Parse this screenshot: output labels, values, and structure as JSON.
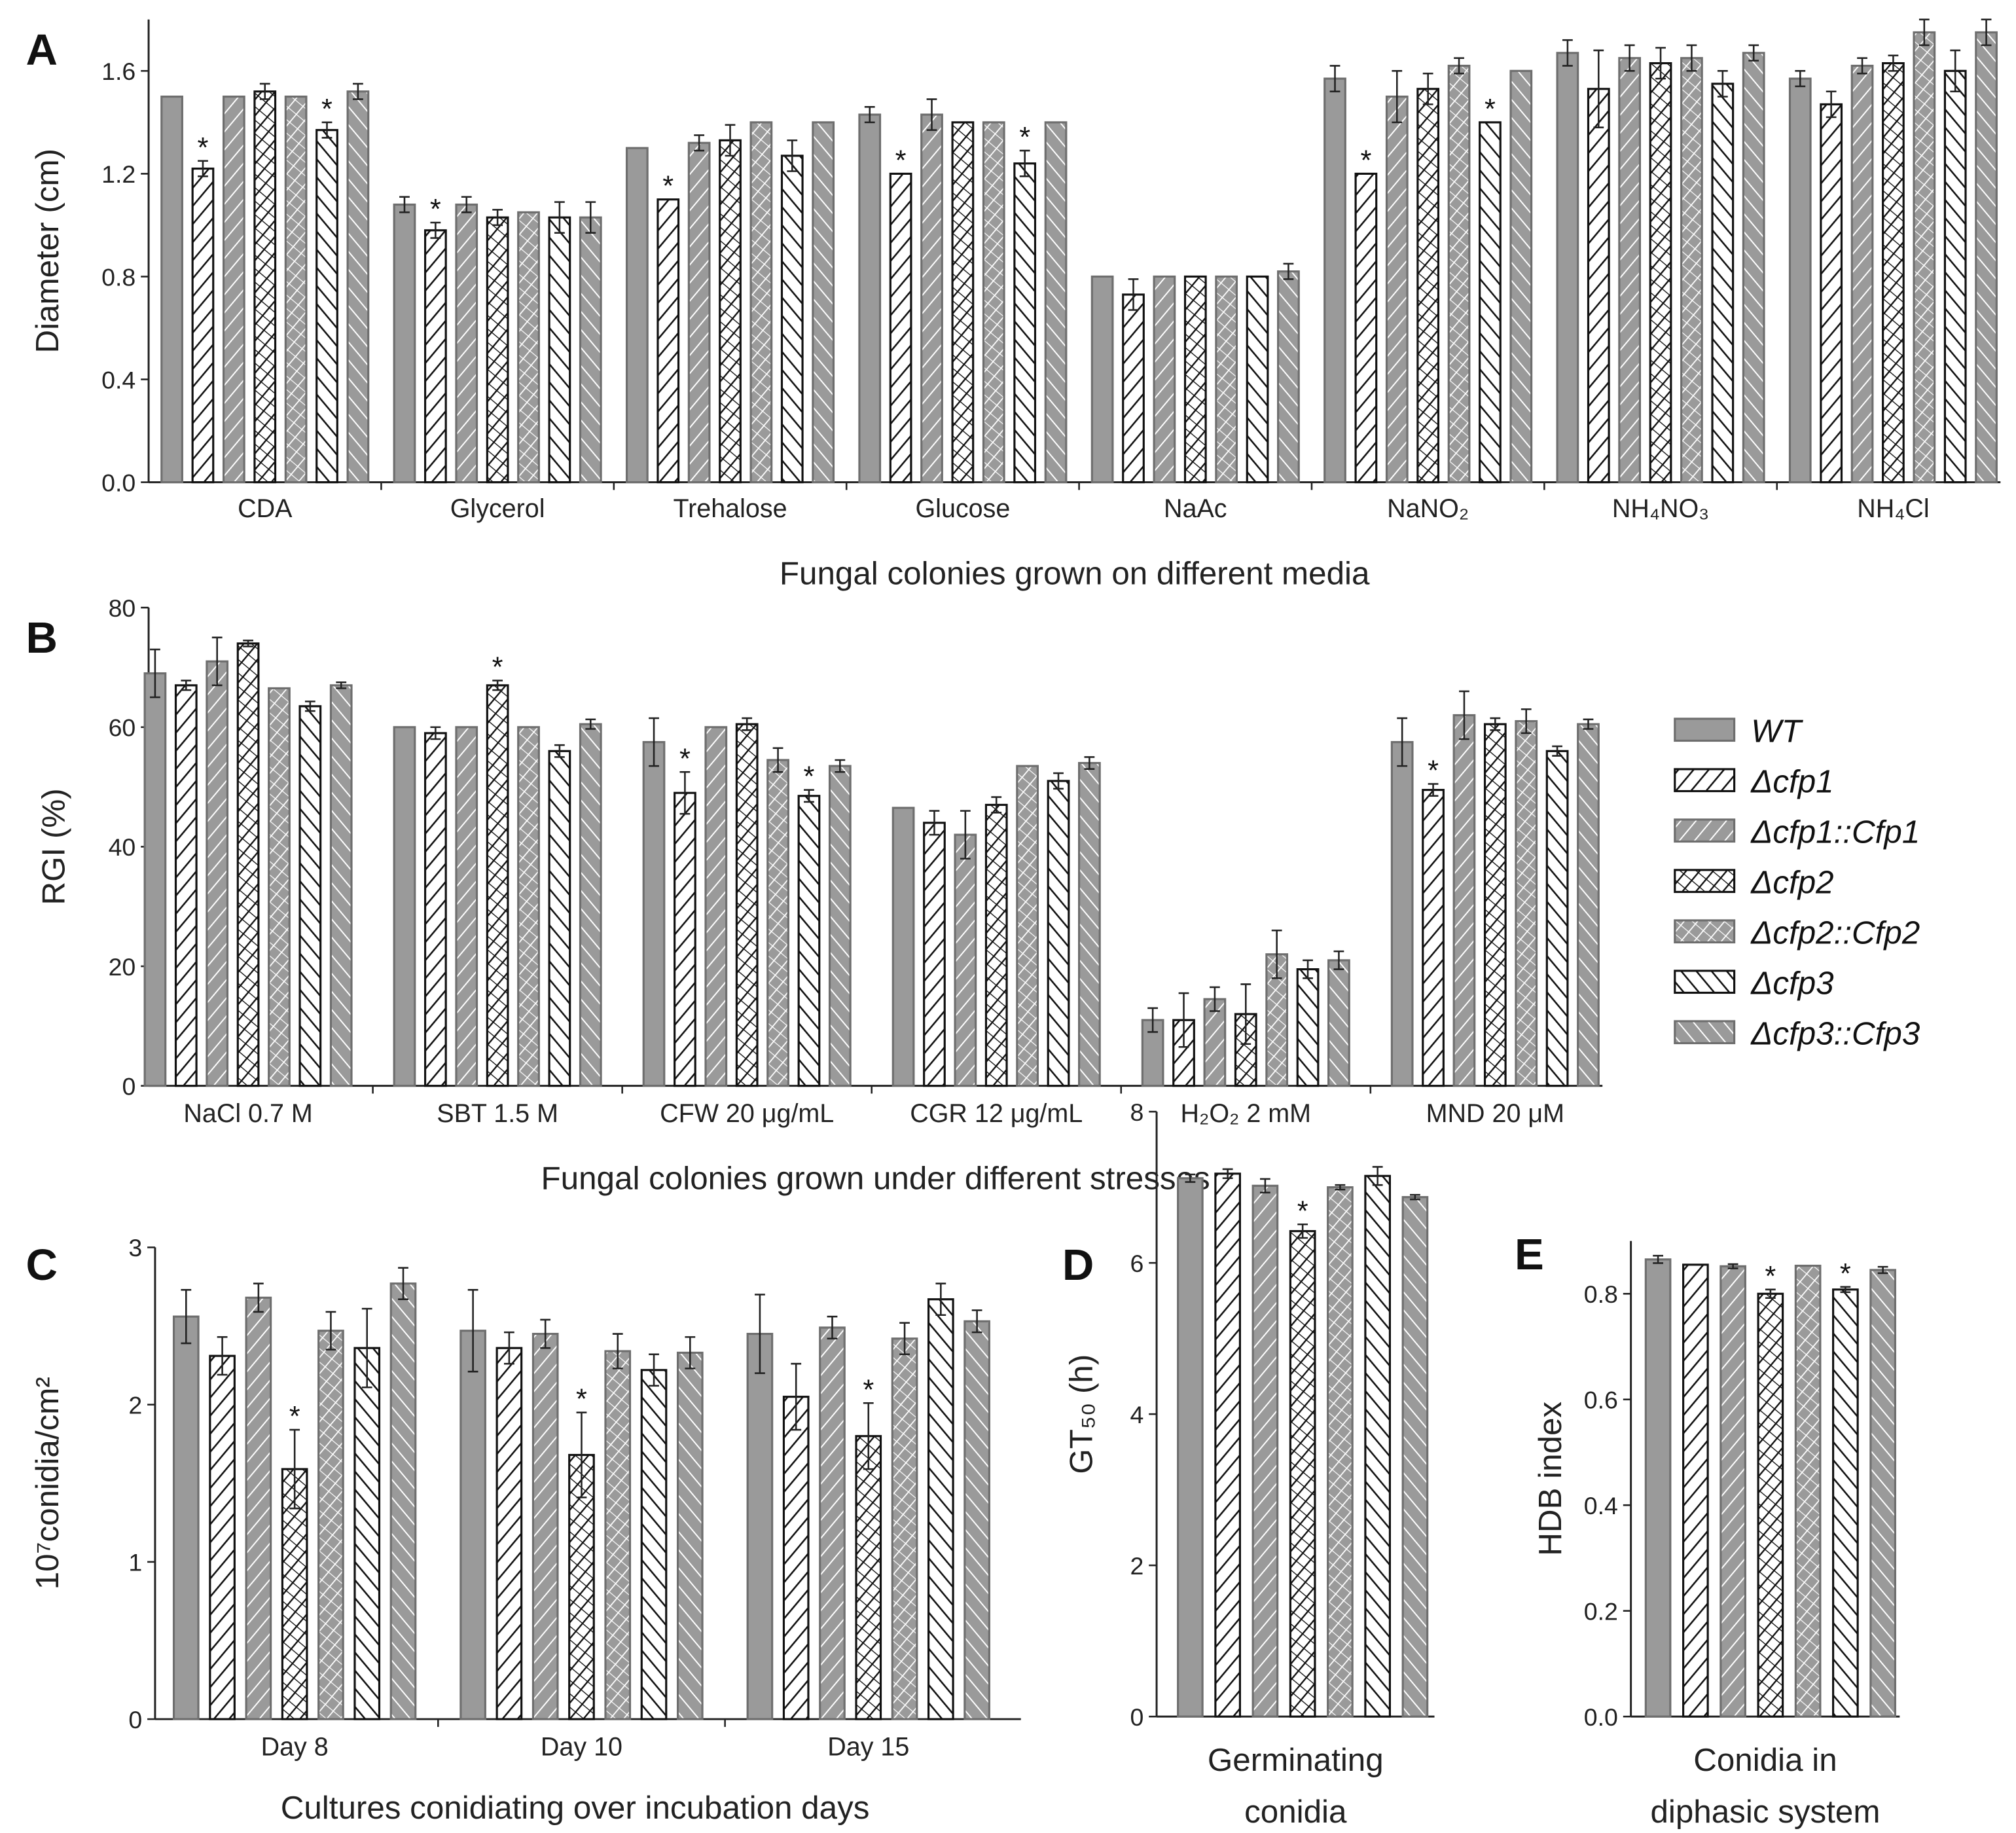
{
  "legend": [
    "WT",
    "Δcfp1",
    "Δcfp1::Cfp1",
    "Δcfp2",
    "Δcfp2::Cfp2",
    "Δcfp3",
    "Δcfp3::Cfp3"
  ],
  "colors": {
    "gray": "#9a9a9a",
    "edge_gray": "#6e6e6e",
    "black": "#111111",
    "white": "#ffffff"
  },
  "chart_data": [
    {
      "panel": "A",
      "type": "bar",
      "xlabel": "Fungal colonies grown on different media",
      "ylabel": "Diameter (cm)",
      "ylim": [
        0,
        1.8
      ],
      "yticks": [
        0.0,
        0.4,
        0.8,
        1.2,
        1.6
      ],
      "ytick_labels": [
        "0.0",
        "0.4",
        "0.8",
        "1.2",
        "1.6"
      ],
      "categories": [
        "CDA",
        "Glycerol",
        "Trehalose",
        "Glucose",
        "NaAc",
        "NaNO₂",
        "NH₄NO₃",
        "NH₄Cl"
      ],
      "series": [
        {
          "name": "WT",
          "values": [
            1.5,
            1.08,
            1.3,
            1.43,
            0.8,
            1.57,
            1.67,
            1.57
          ],
          "errors": [
            0,
            0.03,
            0,
            0.03,
            0,
            0.05,
            0.05,
            0.03
          ]
        },
        {
          "name": "Δcfp1",
          "values": [
            1.22,
            0.98,
            1.1,
            1.2,
            0.73,
            1.2,
            1.53,
            1.47
          ],
          "errors": [
            0.03,
            0.03,
            0,
            0,
            0.06,
            0,
            0.15,
            0.05
          ]
        },
        {
          "name": "Δcfp1::Cfp1",
          "values": [
            1.5,
            1.08,
            1.32,
            1.43,
            0.8,
            1.5,
            1.65,
            1.62
          ],
          "errors": [
            0,
            0.03,
            0.03,
            0.06,
            0,
            0.1,
            0.05,
            0.03
          ]
        },
        {
          "name": "Δcfp2",
          "values": [
            1.52,
            1.03,
            1.33,
            1.4,
            0.8,
            1.53,
            1.63,
            1.63
          ],
          "errors": [
            0.03,
            0.03,
            0.06,
            0,
            0,
            0.06,
            0.06,
            0.03
          ]
        },
        {
          "name": "Δcfp2::Cfp2",
          "values": [
            1.5,
            1.05,
            1.4,
            1.4,
            0.8,
            1.62,
            1.65,
            1.75
          ],
          "errors": [
            0,
            0,
            0,
            0,
            0,
            0.03,
            0.05,
            0.05
          ]
        },
        {
          "name": "Δcfp3",
          "values": [
            1.37,
            1.03,
            1.27,
            1.24,
            0.8,
            1.4,
            1.55,
            1.6
          ],
          "errors": [
            0.03,
            0.06,
            0.06,
            0.05,
            0,
            0,
            0.05,
            0.08
          ]
        },
        {
          "name": "Δcfp3::Cfp3",
          "values": [
            1.52,
            1.03,
            1.4,
            1.4,
            0.82,
            1.6,
            1.67,
            1.75
          ],
          "errors": [
            0.03,
            0.06,
            0,
            0,
            0.03,
            0,
            0.03,
            0.05
          ]
        }
      ],
      "significant": [
        [
          1,
          0
        ],
        [
          5,
          0
        ],
        [
          1,
          1
        ],
        [
          1,
          2
        ],
        [
          1,
          3
        ],
        [
          5,
          3
        ],
        [
          1,
          5
        ],
        [
          5,
          5
        ]
      ]
    },
    {
      "panel": "B",
      "type": "bar",
      "xlabel": "Fungal colonies grown under different stresses",
      "ylabel": "RGI (%)",
      "ylim": [
        0,
        80
      ],
      "yticks": [
        0,
        20,
        40,
        60,
        80
      ],
      "ytick_labels": [
        "0",
        "20",
        "40",
        "60",
        "80"
      ],
      "categories": [
        "NaCl 0.7 M",
        "SBT 1.5 M",
        "CFW 20 μg/mL",
        "CGR 12 μg/mL",
        "H₂O₂ 2 mM",
        "MND 20 μM"
      ],
      "series": [
        {
          "name": "WT",
          "values": [
            69,
            60,
            57.5,
            46.5,
            11,
            57.5
          ],
          "errors": [
            4,
            0,
            4,
            0,
            2,
            4
          ]
        },
        {
          "name": "Δcfp1",
          "values": [
            67,
            59,
            49,
            44,
            11,
            49.5
          ],
          "errors": [
            0.8,
            1,
            3.5,
            2,
            4.5,
            1
          ]
        },
        {
          "name": "Δcfp1::Cfp1",
          "values": [
            71,
            60,
            60,
            42,
            14.5,
            62
          ],
          "errors": [
            4,
            0,
            0,
            4,
            2,
            4
          ]
        },
        {
          "name": "Δcfp2",
          "values": [
            74,
            67,
            60.5,
            47,
            12,
            60.5
          ],
          "errors": [
            0.5,
            0.8,
            1,
            1.3,
            5,
            1
          ]
        },
        {
          "name": "Δcfp2::Cfp2",
          "values": [
            66.5,
            60,
            54.5,
            53.5,
            22,
            61
          ],
          "errors": [
            0,
            0,
            2,
            0,
            4,
            2
          ]
        },
        {
          "name": "Δcfp3",
          "values": [
            63.5,
            56,
            48.5,
            51,
            19.5,
            56
          ],
          "errors": [
            0.8,
            1,
            1,
            1.3,
            1.5,
            0.8
          ]
        },
        {
          "name": "Δcfp3::Cfp3",
          "values": [
            67,
            60.5,
            53.5,
            54,
            21,
            60.5
          ],
          "errors": [
            0.5,
            0.8,
            1,
            1,
            1.5,
            0.8
          ]
        }
      ],
      "significant": [
        [
          3,
          1
        ],
        [
          1,
          2
        ],
        [
          5,
          2
        ],
        [
          1,
          5
        ]
      ]
    },
    {
      "panel": "C",
      "type": "bar",
      "xlabel": "Cultures conidiating over incubation days",
      "ylabel": "10⁷conidia/cm²",
      "ylim": [
        0,
        3
      ],
      "yticks": [
        0,
        1,
        2,
        3
      ],
      "ytick_labels": [
        "0",
        "1",
        "2",
        "3"
      ],
      "categories": [
        "Day 8",
        "Day 10",
        "Day 15"
      ],
      "series": [
        {
          "name": "WT",
          "values": [
            2.56,
            2.47,
            2.45
          ],
          "errors": [
            0.17,
            0.26,
            0.25
          ]
        },
        {
          "name": "Δcfp1",
          "values": [
            2.31,
            2.36,
            2.05
          ],
          "errors": [
            0.12,
            0.1,
            0.21
          ]
        },
        {
          "name": "Δcfp1::Cfp1",
          "values": [
            2.68,
            2.45,
            2.49
          ],
          "errors": [
            0.09,
            0.09,
            0.07
          ]
        },
        {
          "name": "Δcfp2",
          "values": [
            1.59,
            1.68,
            1.8
          ],
          "errors": [
            0.25,
            0.27,
            0.21
          ]
        },
        {
          "name": "Δcfp2::Cfp2",
          "values": [
            2.47,
            2.34,
            2.42
          ],
          "errors": [
            0.12,
            0.11,
            0.1
          ]
        },
        {
          "name": "Δcfp3",
          "values": [
            2.36,
            2.22,
            2.67
          ],
          "errors": [
            0.25,
            0.1,
            0.1
          ]
        },
        {
          "name": "Δcfp3::Cfp3",
          "values": [
            2.77,
            2.33,
            2.53
          ],
          "errors": [
            0.1,
            0.1,
            0.07
          ]
        }
      ],
      "significant": [
        [
          3,
          0
        ],
        [
          3,
          1
        ],
        [
          3,
          2
        ]
      ]
    },
    {
      "panel": "D",
      "type": "bar",
      "xlabel": "Germinating conidia",
      "ylabel": "GT₅₀ (h)",
      "ylim": [
        0,
        8
      ],
      "yticks": [
        0,
        2,
        4,
        6,
        8
      ],
      "ytick_labels": [
        "0",
        "2",
        "4",
        "6",
        "8"
      ],
      "categories": [
        ""
      ],
      "series": [
        {
          "name": "WT",
          "values": [
            7.12
          ],
          "errors": [
            0.05
          ]
        },
        {
          "name": "Δcfp1",
          "values": [
            7.18
          ],
          "errors": [
            0.06
          ]
        },
        {
          "name": "Δcfp1::Cfp1",
          "values": [
            7.02
          ],
          "errors": [
            0.09
          ]
        },
        {
          "name": "Δcfp2",
          "values": [
            6.42
          ],
          "errors": [
            0.09
          ]
        },
        {
          "name": "Δcfp2::Cfp2",
          "values": [
            7.0
          ],
          "errors": [
            0.03
          ]
        },
        {
          "name": "Δcfp3",
          "values": [
            7.15
          ],
          "errors": [
            0.12
          ]
        },
        {
          "name": "Δcfp3::Cfp3",
          "values": [
            6.87
          ],
          "errors": [
            0.03
          ]
        }
      ],
      "significant": [
        [
          3,
          0
        ]
      ]
    },
    {
      "panel": "E",
      "type": "bar",
      "xlabel": "Conidia in diphasic system",
      "ylabel": "HDB index",
      "ylim": [
        0,
        0.9
      ],
      "yticks": [
        0.0,
        0.2,
        0.4,
        0.6,
        0.8
      ],
      "ytick_labels": [
        "0.0",
        "0.2",
        "0.4",
        "0.6",
        "0.8"
      ],
      "categories": [
        ""
      ],
      "series": [
        {
          "name": "WT",
          "values": [
            0.865
          ],
          "errors": [
            0.007
          ]
        },
        {
          "name": "Δcfp1",
          "values": [
            0.855
          ],
          "errors": [
            0
          ]
        },
        {
          "name": "Δcfp1::Cfp1",
          "values": [
            0.852
          ],
          "errors": [
            0.004
          ]
        },
        {
          "name": "Δcfp2",
          "values": [
            0.8
          ],
          "errors": [
            0.008
          ]
        },
        {
          "name": "Δcfp2::Cfp2",
          "values": [
            0.853
          ],
          "errors": [
            0
          ]
        },
        {
          "name": "Δcfp3",
          "values": [
            0.808
          ],
          "errors": [
            0.005
          ]
        },
        {
          "name": "Δcfp3::Cfp3",
          "values": [
            0.845
          ],
          "errors": [
            0.006
          ]
        }
      ],
      "significant": [
        [
          3,
          0
        ],
        [
          5,
          0
        ]
      ]
    }
  ]
}
